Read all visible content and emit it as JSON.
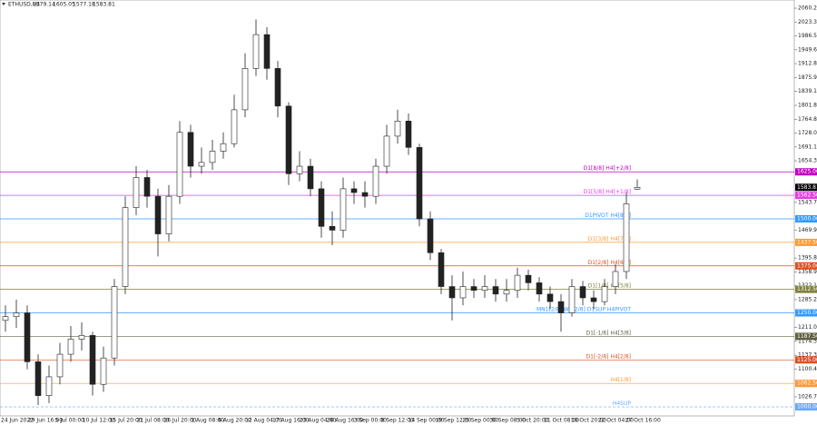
{
  "chart_data": {
    "type": "candlestick",
    "title": "ETHUSD,H4",
    "open": [
      1230,
      1240,
      1250,
      1120,
      1030,
      1080,
      1140,
      1180,
      1190,
      1060,
      1130,
      1320,
      1530,
      1610,
      1560,
      1460,
      1560,
      1730,
      1640,
      1650,
      1680,
      1700,
      1790,
      1900,
      1990,
      1900,
      1800,
      1620,
      1640,
      1580,
      1480,
      1470,
      1580,
      1570,
      1560,
      1640,
      1720,
      1760,
      1690,
      1500,
      1410,
      1320,
      1290,
      1320,
      1310,
      1320,
      1300,
      1310,
      1350,
      1330,
      1300,
      1280,
      1250,
      1320,
      1290,
      1280,
      1320,
      1360,
      1579.14
    ],
    "high": [
      1270,
      1285,
      1270,
      1140,
      1110,
      1170,
      1215,
      1225,
      1200,
      1160,
      1340,
      1560,
      1640,
      1630,
      1580,
      1590,
      1760,
      1750,
      1690,
      1710,
      1730,
      1830,
      1940,
      2030,
      2010,
      1920,
      1810,
      1680,
      1660,
      1600,
      1520,
      1610,
      1600,
      1600,
      1660,
      1750,
      1790,
      1780,
      1700,
      1520,
      1420,
      1350,
      1360,
      1340,
      1350,
      1340,
      1340,
      1370,
      1365,
      1345,
      1320,
      1300,
      1340,
      1335,
      1310,
      1340,
      1380,
      1570,
      1605.05
    ],
    "low": [
      1200,
      1210,
      1100,
      1005,
      1010,
      1060,
      1120,
      1150,
      1030,
      1040,
      1110,
      1300,
      1510,
      1530,
      1400,
      1440,
      1540,
      1610,
      1620,
      1630,
      1660,
      1690,
      1770,
      1880,
      1870,
      1770,
      1590,
      1600,
      1560,
      1450,
      1430,
      1450,
      1540,
      1530,
      1540,
      1620,
      1700,
      1670,
      1480,
      1390,
      1300,
      1230,
      1270,
      1290,
      1290,
      1280,
      1280,
      1290,
      1310,
      1280,
      1260,
      1200,
      1240,
      1270,
      1260,
      1270,
      1300,
      1340,
      1577.18
    ],
    "close": [
      1240,
      1250,
      1120,
      1030,
      1080,
      1140,
      1180,
      1190,
      1060,
      1130,
      1320,
      1530,
      1610,
      1560,
      1460,
      1560,
      1730,
      1640,
      1650,
      1680,
      1700,
      1790,
      1900,
      1990,
      1900,
      1800,
      1620,
      1640,
      1580,
      1480,
      1470,
      1580,
      1570,
      1560,
      1640,
      1720,
      1760,
      1690,
      1500,
      1410,
      1320,
      1290,
      1320,
      1310,
      1320,
      1300,
      1310,
      1350,
      1330,
      1300,
      1280,
      1250,
      1320,
      1290,
      1280,
      1320,
      1360,
      1540,
      1583.81
    ],
    "ylim": [
      976,
      2082
    ],
    "yticks": [
      {
        "value": 2060.2,
        "label": "2060.20"
      },
      {
        "value": 2023.35,
        "label": "2023.35"
      },
      {
        "value": 1986.5,
        "label": "1986.50"
      },
      {
        "value": 1949.65,
        "label": "1949.65"
      },
      {
        "value": 1912.8,
        "label": "1912.80"
      },
      {
        "value": 1875.95,
        "label": "1875.95"
      },
      {
        "value": 1839.1,
        "label": "1839.10"
      },
      {
        "value": 1801.8,
        "label": "1801.80"
      },
      {
        "value": 1764.85,
        "label": "1764.85"
      },
      {
        "value": 1728,
        "label": "1728.00"
      },
      {
        "value": 1691.15,
        "label": "1691.15"
      },
      {
        "value": 1654.3,
        "label": "1654.30"
      },
      {
        "value": 1543.75,
        "label": "1543.75"
      },
      {
        "value": 1469.9,
        "label": "1469.90"
      },
      {
        "value": 1395.8,
        "label": "1395.80"
      },
      {
        "value": 1358.95,
        "label": "1358.95"
      },
      {
        "value": 1322.1,
        "label": "1322.10"
      },
      {
        "value": 1285.25,
        "label": "1285.25"
      },
      {
        "value": 1211,
        "label": "1211.00"
      },
      {
        "value": 1174.35,
        "label": "1174.35"
      },
      {
        "value": 1137.3,
        "label": "1137.30"
      },
      {
        "value": 1100.45,
        "label": "1100.45"
      },
      {
        "value": 1026.75,
        "label": "1026.75"
      }
    ],
    "xticks": [
      "24 Jun 2022",
      "29 Jun 16:00",
      "5 Jul 00:00",
      "10 Jul 12:00",
      "15 Jul 20:00",
      "21 Jul 08:00",
      "26 Jul 20:00",
      "1 Aug 08:00",
      "6 Aug 20:00",
      "12 Aug 04:00",
      "17 Aug 16:00",
      "23 Aug 04:00",
      "28 Aug 16:00",
      "3 Sep 00:00",
      "8 Sep 12:00",
      "14 Sep 00:00",
      "19 Sep 12:00",
      "25 Sep 00:00",
      "30 Sep 08:00",
      "5 Oct 20:00",
      "11 Oct 08:00",
      "16 Oct 20:00",
      "22 Oct 04:00",
      "27 Oct 16:00"
    ],
    "levels": [
      {
        "value": 1625,
        "label": "1625.00",
        "name": "D1[8/8] H4[+2/8]",
        "color": "#c000c0"
      },
      {
        "value": 1562.5,
        "label": "1562.50",
        "name": "D1[5/8] H4[+1/8]",
        "color": "#e040e0"
      },
      {
        "value": 1500,
        "label": "1500.00",
        "name": "D1PIVOT H4[8/8]",
        "color": "#3399ff"
      },
      {
        "value": 1437.5,
        "label": "1437.50",
        "name": "D1[3/8] H4[7/8]",
        "color": "#ff9933"
      },
      {
        "value": 1375,
        "label": "1375.00",
        "name": "D1[2/8] H4[6/8]",
        "color": "#e05020"
      },
      {
        "value": 1312.5,
        "label": "1312.50",
        "name": "D1[1/8] H4[5/8]",
        "color": "#808040"
      },
      {
        "value": 1250,
        "label": "1250.00",
        "name": "MN1[2/8] W1[2/8] D1SUP H4PIVOT",
        "color": "#3399ff"
      },
      {
        "value": 1187.5,
        "label": "1187.50",
        "name": "D1[-1/8] H4[3/8]",
        "color": "#606040"
      },
      {
        "value": 1125,
        "label": "1125.00",
        "name": "D1[-2/8] H4[2/8]",
        "color": "#e05020"
      },
      {
        "value": 1062.5,
        "label": "1062.50",
        "name": "H4[1/8]",
        "color": "#ff9933"
      },
      {
        "value": 1000,
        "label": "1000.00",
        "name": "H4SUP",
        "color": "#66aaff"
      }
    ],
    "last": {
      "value": 1583.81,
      "label": "1583.81"
    }
  }
}
